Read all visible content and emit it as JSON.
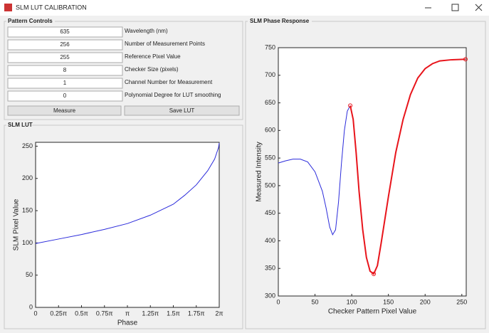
{
  "window": {
    "title": "SLM LUT CALIBRATION"
  },
  "pattern_controls": {
    "title": "Pattern Controls",
    "fields": [
      {
        "value": "635",
        "label": "Wavelength (nm)"
      },
      {
        "value": "256",
        "label": "Number of Measurement Points"
      },
      {
        "value": "255",
        "label": "Reference Pixel Value"
      },
      {
        "value": "8",
        "label": "Checker Size (pixels)"
      },
      {
        "value": "1",
        "label": "Channel Number for Measurement"
      },
      {
        "value": "0",
        "label": "Polynomial Degree for LUT smoothing"
      }
    ],
    "buttons": [
      "Measure",
      "Save LUT"
    ]
  },
  "lut_panel": {
    "title": "SLM LUT"
  },
  "phase_panel": {
    "title": "SLM Phase Response"
  },
  "chart_data": [
    {
      "type": "line",
      "xlabel": "Phase",
      "ylabel": "SLM Pixel Value",
      "xlim": [
        0,
        6.2832
      ],
      "ylim": [
        0,
        256
      ],
      "xticks": [
        0,
        {
          "value": 0.7854,
          "label": "0.25π"
        },
        {
          "value": 1.5708,
          "label": "0.5π"
        },
        {
          "value": 2.3562,
          "label": "0.75π"
        },
        {
          "value": 3.1416,
          "label": "π"
        },
        {
          "value": 3.927,
          "label": "1.25π"
        },
        {
          "value": 4.7124,
          "label": "1.5π"
        },
        {
          "value": 5.4978,
          "label": "1.75π"
        },
        {
          "value": 6.2832,
          "label": "2π"
        }
      ],
      "yticks": [
        0,
        50,
        100,
        150,
        200,
        250
      ],
      "series": [
        {
          "color": "#2b2bdb",
          "line": true,
          "x": [
            0,
            0.785,
            1.571,
            2.356,
            3.142,
            3.927,
            4.712,
            5.105,
            5.498,
            5.89,
            6.126,
            6.2,
            6.26,
            6.283
          ],
          "values": [
            99,
            106,
            113,
            121,
            130,
            143,
            160,
            174,
            190,
            212,
            230,
            240,
            248,
            255
          ]
        }
      ]
    },
    {
      "type": "line",
      "xlabel": "Checker Pattern Pixel Value",
      "ylabel": "Measured Intensity",
      "xlim": [
        0,
        256
      ],
      "ylim": [
        300,
        750
      ],
      "xticks": [
        0,
        50,
        100,
        150,
        200,
        250
      ],
      "yticks": [
        300,
        350,
        400,
        450,
        500,
        550,
        600,
        650,
        700,
        750
      ],
      "series": [
        {
          "color": "#2b2bdb",
          "line": true,
          "x": [
            0,
            10,
            20,
            30,
            40,
            50,
            60,
            65,
            70,
            74,
            78,
            82,
            86,
            90,
            94,
            98
          ],
          "values": [
            541,
            545,
            548,
            548,
            543,
            525,
            490,
            460,
            425,
            411,
            420,
            470,
            540,
            600,
            635,
            645
          ]
        },
        {
          "color": "#e8141b",
          "line": true,
          "x": [
            98,
            102,
            106,
            110,
            115,
            120,
            125,
            130,
            135,
            140,
            150,
            160,
            170,
            180,
            190,
            200,
            210,
            220,
            235,
            255
          ],
          "values": [
            645,
            620,
            560,
            490,
            420,
            370,
            345,
            340,
            355,
            395,
            480,
            560,
            620,
            665,
            695,
            712,
            721,
            726,
            728,
            729
          ]
        },
        {
          "color": "#e8141b",
          "line": false,
          "marker": "o",
          "x": [
            98,
            130,
            255
          ],
          "values": [
            645,
            340,
            729
          ]
        }
      ]
    }
  ]
}
